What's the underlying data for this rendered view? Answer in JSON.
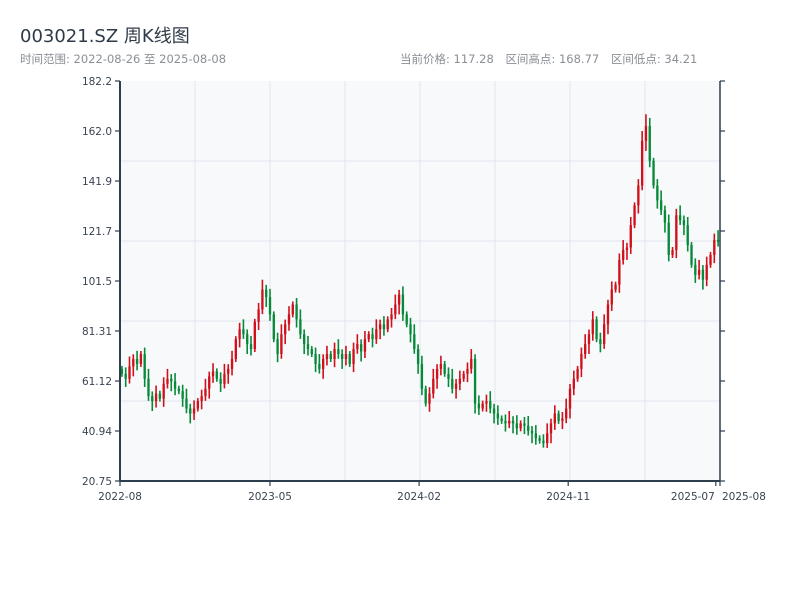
{
  "header": {
    "title": "003021.SZ 周K线图",
    "range_text": "时间范围: 2022-08-26 至 2025-08-08",
    "current_price": "当前价格: 117.28",
    "range_high": "区间高点: 168.77",
    "range_low": "区间低点: 34.21"
  },
  "chart_data": {
    "type": "candlestick",
    "title": "003021.SZ 周K线图",
    "xlabel": "",
    "ylabel": "",
    "ylim": [
      20.75,
      182.2
    ],
    "yticks": [
      "20.75",
      "40.94",
      "61.12",
      "81.31",
      "101.5",
      "121.7",
      "141.9",
      "162.0",
      "182.2"
    ],
    "xticks": [
      {
        "label": "2022-08",
        "frac": 0
      },
      {
        "label": "2023-05",
        "frac": 0.25
      },
      {
        "label": "2024-02",
        "frac": 0.4985
      },
      {
        "label": "2024-11",
        "frac": 0.747
      },
      {
        "label": "2025-07",
        "frac": 0.993
      },
      {
        "label": "2025-08",
        "frac": 1
      }
    ],
    "grid": true,
    "up_color": "#d0101b",
    "down_color": "#07893a",
    "start_open": 66,
    "high": 168.77,
    "low": 34.21,
    "last_close": 117.28,
    "closes": [
      64,
      62,
      67,
      70,
      68,
      72,
      62,
      55,
      53,
      56,
      54,
      60,
      62,
      61,
      58,
      57,
      54,
      50,
      48,
      50,
      53,
      55,
      58,
      63,
      65,
      62,
      60,
      64,
      66,
      70,
      78,
      82,
      80,
      76,
      74,
      85,
      90,
      98,
      95,
      88,
      78,
      72,
      80,
      84,
      88,
      92,
      86,
      80,
      76,
      74,
      72,
      68,
      66,
      70,
      72,
      70,
      74,
      72,
      70,
      72,
      68,
      74,
      76,
      73,
      78,
      80,
      78,
      82,
      84,
      82,
      86,
      88,
      92,
      96,
      88,
      84,
      80,
      74,
      68,
      58,
      52,
      56,
      62,
      66,
      68,
      64,
      62,
      58,
      60,
      62,
      64,
      66,
      70,
      52,
      50,
      52,
      53,
      50,
      48,
      46,
      45,
      44,
      45,
      44,
      42,
      44,
      43,
      41,
      40,
      38,
      37,
      36,
      40,
      44,
      48,
      45,
      46,
      50,
      58,
      62,
      66,
      72,
      76,
      80,
      86,
      78,
      76,
      84,
      92,
      98,
      100,
      110,
      114,
      115,
      124,
      132,
      140,
      158,
      164,
      150,
      140,
      134,
      130,
      125,
      112,
      114,
      128,
      126,
      124,
      116,
      108,
      104,
      106,
      102,
      108,
      112,
      118,
      117.28
    ]
  }
}
